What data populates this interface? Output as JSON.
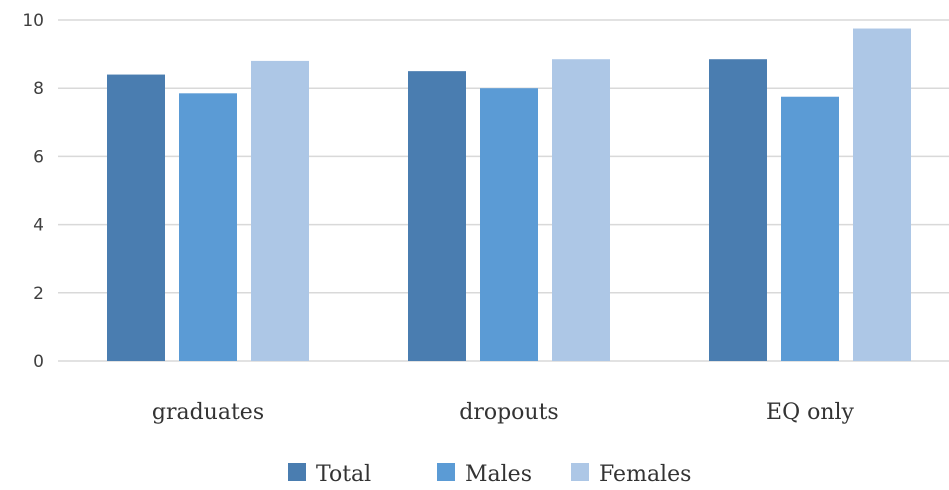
{
  "chart_data": {
    "type": "bar",
    "categories": [
      "graduates",
      "dropouts",
      "EQ only"
    ],
    "series": [
      {
        "name": "Total",
        "values": [
          8.4,
          8.5,
          8.85
        ],
        "color": "#4a7db0"
      },
      {
        "name": "Males",
        "values": [
          7.85,
          8.0,
          7.75
        ],
        "color": "#5b9bd5"
      },
      {
        "name": "Females",
        "values": [
          8.8,
          8.85,
          9.75
        ],
        "color": "#adc7e6"
      }
    ],
    "ylim": [
      0,
      10
    ],
    "yticks": [
      0,
      2,
      4,
      6,
      8,
      10
    ],
    "grid": true,
    "legend_position": "bottom"
  }
}
